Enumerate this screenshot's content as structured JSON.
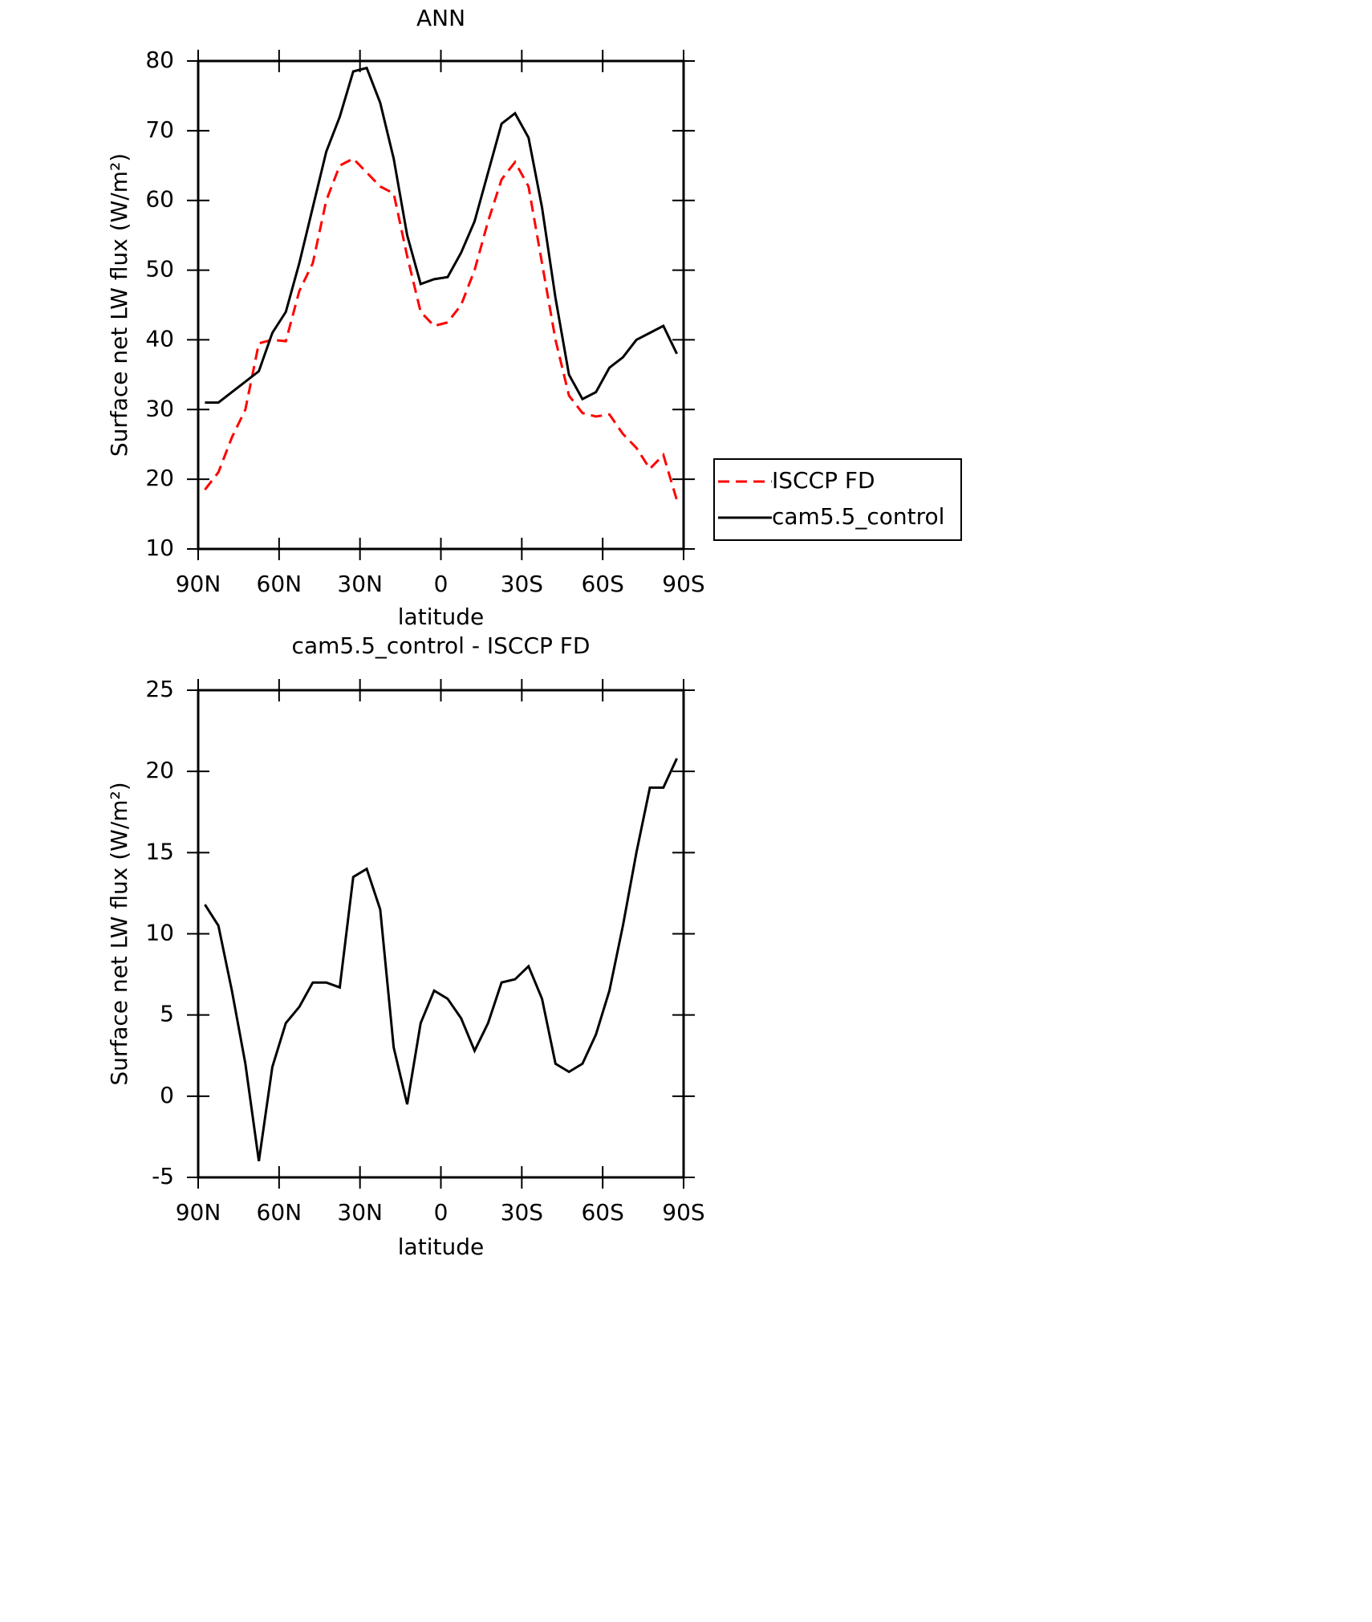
{
  "chart_data": [
    {
      "type": "line",
      "title": "ANN",
      "xlabel": "latitude",
      "ylabel": "Surface net LW flux (W/m²)",
      "x": [
        87.5,
        82.5,
        77.5,
        72.5,
        67.5,
        62.5,
        57.5,
        52.5,
        47.5,
        42.5,
        37.5,
        32.5,
        27.5,
        22.5,
        17.5,
        12.5,
        7.5,
        2.5,
        -2.5,
        -7.5,
        -12.5,
        -17.5,
        -22.5,
        -27.5,
        -32.5,
        -37.5,
        -42.5,
        -47.5,
        -52.5,
        -57.5,
        -62.5,
        -67.5,
        -72.5,
        -77.5,
        -82.5,
        -87.5
      ],
      "series": [
        {
          "name": "ISCCP FD",
          "color": "#ff0000",
          "dash": true,
          "values": [
            18.5,
            21,
            26,
            30,
            39.5,
            40,
            39.8,
            47,
            51,
            60,
            65,
            66,
            64,
            62,
            61,
            52,
            44,
            42,
            42.5,
            45,
            50,
            57,
            63,
            65.5,
            62,
            51,
            40,
            32,
            29.5,
            29,
            29.3,
            26.5,
            24.5,
            21.5,
            23.5,
            17
          ]
        },
        {
          "name": "cam5.5_control",
          "color": "#000000",
          "dash": false,
          "values": [
            31,
            31,
            32.5,
            34,
            35.5,
            41,
            44,
            51,
            59,
            67,
            72,
            78.5,
            79,
            74,
            66,
            55,
            48,
            48.7,
            49,
            52.5,
            57,
            64,
            71,
            72.5,
            69,
            59,
            46,
            35,
            31.5,
            32.5,
            36,
            37.5,
            40,
            41,
            42,
            38
          ]
        }
      ],
      "xlim": [
        90,
        -90
      ],
      "xticks": [
        {
          "value": 90,
          "label": "90N"
        },
        {
          "value": 60,
          "label": "60N"
        },
        {
          "value": 30,
          "label": "30N"
        },
        0,
        {
          "value": -30,
          "label": "30S"
        },
        {
          "value": -60,
          "label": "60S"
        },
        {
          "value": -90,
          "label": "90S"
        }
      ],
      "ylim": [
        10,
        80
      ],
      "yticks": [
        10,
        20,
        30,
        40,
        50,
        60,
        70,
        80
      ],
      "legend": "right"
    },
    {
      "type": "line",
      "title": "cam5.5_control - ISCCP FD",
      "xlabel": "latitude",
      "ylabel": "Surface net LW flux (W/m²)",
      "x": [
        87.5,
        82.5,
        77.5,
        72.5,
        67.5,
        62.5,
        57.5,
        52.5,
        47.5,
        42.5,
        37.5,
        32.5,
        27.5,
        22.5,
        17.5,
        12.5,
        7.5,
        2.5,
        -2.5,
        -7.5,
        -12.5,
        -17.5,
        -22.5,
        -27.5,
        -32.5,
        -37.5,
        -42.5,
        -47.5,
        -52.5,
        -57.5,
        -62.5,
        -67.5,
        -72.5,
        -77.5,
        -82.5,
        -87.5
      ],
      "series": [
        {
          "color": "#000000",
          "dash": false,
          "values": [
            11.8,
            10.5,
            6.5,
            2,
            -4,
            1.8,
            4.5,
            5.5,
            7,
            7,
            6.7,
            13.5,
            14,
            11.5,
            3,
            -0.5,
            4.5,
            6.5,
            6,
            4.8,
            2.8,
            4.5,
            7,
            7.2,
            8,
            6,
            2,
            1.5,
            2,
            3.8,
            6.5,
            10.5,
            15,
            19,
            19,
            20.8
          ]
        }
      ],
      "xlim": [
        90,
        -90
      ],
      "xticks": [
        {
          "value": 90,
          "label": "90N"
        },
        {
          "value": 60,
          "label": "60N"
        },
        {
          "value": 30,
          "label": "30N"
        },
        0,
        {
          "value": -30,
          "label": "30S"
        },
        {
          "value": -60,
          "label": "60S"
        },
        {
          "value": -90,
          "label": "90S"
        }
      ],
      "ylim": [
        -5,
        25
      ],
      "yticks": [
        -5,
        0,
        5,
        10,
        15,
        20,
        25
      ]
    }
  ]
}
